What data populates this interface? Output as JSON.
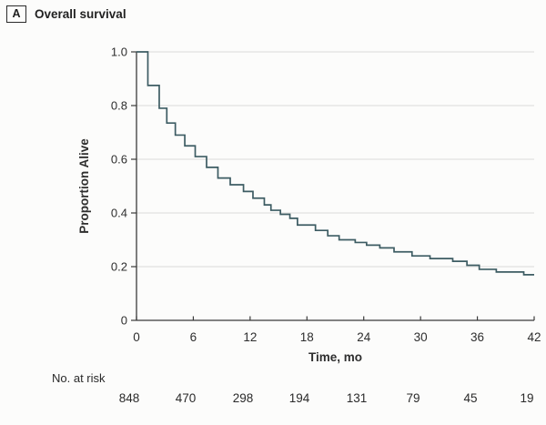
{
  "panel": {
    "letter": "A",
    "title": "Overall survival"
  },
  "chart_data": {
    "type": "line",
    "subtype": "kaplan-meier-step",
    "title": "Overall survival",
    "xlabel": "Time, mo",
    "ylabel": "Proportion Alive",
    "xlim": [
      0,
      42
    ],
    "ylim": [
      0,
      1.0
    ],
    "xticks": [
      0,
      6,
      12,
      18,
      24,
      30,
      36,
      42
    ],
    "yticks": [
      0,
      0.2,
      0.4,
      0.6,
      0.8,
      1.0
    ],
    "grid": "horizontal",
    "legend": "none",
    "line_color": "#3d5c63",
    "grid_color": "#dadad8",
    "axis_color": "#3a3a3a",
    "series": [
      {
        "name": "Overall survival",
        "points": [
          [
            0,
            1.0
          ],
          [
            1.2,
            0.875
          ],
          [
            2.4,
            0.79
          ],
          [
            3.2,
            0.735
          ],
          [
            4.1,
            0.69
          ],
          [
            5.1,
            0.65
          ],
          [
            6.2,
            0.61
          ],
          [
            7.4,
            0.57
          ],
          [
            8.6,
            0.53
          ],
          [
            9.9,
            0.505
          ],
          [
            11.3,
            0.48
          ],
          [
            12.3,
            0.455
          ],
          [
            13.5,
            0.43
          ],
          [
            14.2,
            0.41
          ],
          [
            15.2,
            0.395
          ],
          [
            16.2,
            0.38
          ],
          [
            17.0,
            0.355
          ],
          [
            18.9,
            0.335
          ],
          [
            20.2,
            0.315
          ],
          [
            21.4,
            0.3
          ],
          [
            23.1,
            0.29
          ],
          [
            24.3,
            0.28
          ],
          [
            25.7,
            0.27
          ],
          [
            27.2,
            0.255
          ],
          [
            29.1,
            0.24
          ],
          [
            31.0,
            0.23
          ],
          [
            33.4,
            0.22
          ],
          [
            34.9,
            0.205
          ],
          [
            36.2,
            0.19
          ],
          [
            38.0,
            0.18
          ],
          [
            40.9,
            0.17
          ],
          [
            42.0,
            0.17
          ]
        ]
      }
    ]
  },
  "risk_table": {
    "label": "No. at risk",
    "times": [
      0,
      6,
      12,
      18,
      24,
      30,
      36,
      42
    ],
    "values": [
      "848",
      "470",
      "298",
      "194",
      "131",
      "79",
      "45",
      "19"
    ]
  }
}
